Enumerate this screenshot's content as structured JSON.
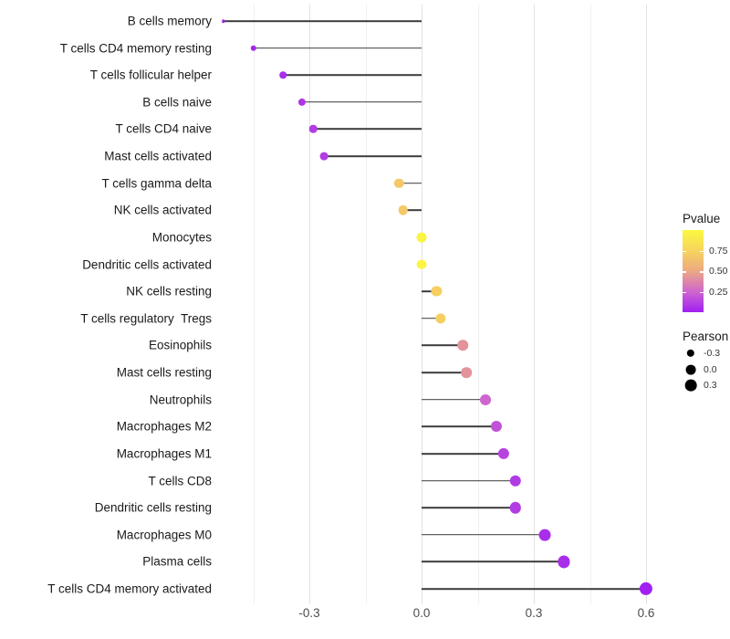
{
  "chart_data": {
    "type": "lollipop",
    "title": "",
    "xlabel": "",
    "ylabel": "",
    "grid": "vertical-only",
    "xlim": [
      -0.55,
      0.63
    ],
    "x_major_ticks": [
      -0.3,
      0.0,
      0.3,
      0.6
    ],
    "x_tick_labels": [
      "-0.3",
      "0.0",
      "0.3",
      "0.6"
    ],
    "x_minor_ticks": [
      -0.45,
      -0.15,
      0.15,
      0.45
    ],
    "rows": [
      {
        "label": "B cells memory",
        "pearson": -0.53,
        "pvalue": 0.01
      },
      {
        "label": "T cells CD4 memory resting",
        "pearson": -0.45,
        "pvalue": 0.02
      },
      {
        "label": "T cells follicular helper",
        "pearson": -0.37,
        "pvalue": 0.05
      },
      {
        "label": "B cells naive",
        "pearson": -0.32,
        "pvalue": 0.08
      },
      {
        "label": "T cells CD4 naive",
        "pearson": -0.29,
        "pvalue": 0.1
      },
      {
        "label": "Mast cells activated",
        "pearson": -0.26,
        "pvalue": 0.1
      },
      {
        "label": "T cells gamma delta",
        "pearson": -0.06,
        "pvalue": 0.68
      },
      {
        "label": "NK cells activated",
        "pearson": -0.05,
        "pvalue": 0.68
      },
      {
        "label": "Monocytes",
        "pearson": 0.0,
        "pvalue": 0.97
      },
      {
        "label": "Dendritic cells activated",
        "pearson": 0.0,
        "pvalue": 0.97
      },
      {
        "label": "NK cells resting",
        "pearson": 0.04,
        "pvalue": 0.72
      },
      {
        "label": "T cells regulatory  Tregs",
        "pearson": 0.05,
        "pvalue": 0.72
      },
      {
        "label": "Eosinophils",
        "pearson": 0.11,
        "pvalue": 0.42
      },
      {
        "label": "Mast cells resting",
        "pearson": 0.12,
        "pvalue": 0.42
      },
      {
        "label": "Neutrophils",
        "pearson": 0.17,
        "pvalue": 0.25
      },
      {
        "label": "Macrophages M2",
        "pearson": 0.2,
        "pvalue": 0.18
      },
      {
        "label": "Macrophages M1",
        "pearson": 0.22,
        "pvalue": 0.13
      },
      {
        "label": "T cells CD8",
        "pearson": 0.25,
        "pvalue": 0.1
      },
      {
        "label": "Dendritic cells resting",
        "pearson": 0.25,
        "pvalue": 0.1
      },
      {
        "label": "Macrophages M0",
        "pearson": 0.33,
        "pvalue": 0.05
      },
      {
        "label": "Plasma cells",
        "pearson": 0.38,
        "pvalue": 0.05
      },
      {
        "label": "T cells CD4 memory activated",
        "pearson": 0.6,
        "pvalue": 0.005
      }
    ],
    "legend_pvalue": {
      "title": "Pvalue",
      "tick_labels": [
        "0.75",
        "0.50",
        "0.25"
      ],
      "tick_values": [
        0.75,
        0.5,
        0.25
      ],
      "range": [
        0,
        1
      ],
      "gradient_low_color": "#a020f0",
      "gradient_high_color": "#fbf840",
      "gradient_stops": [
        "#a020f0",
        "#ce66cf",
        "#eca883",
        "#f7d45e",
        "#fbf840"
      ]
    },
    "legend_pearson": {
      "title": "Pearson",
      "items": [
        {
          "label": "-0.3",
          "value": -0.3
        },
        {
          "label": "0.0",
          "value": 0.0
        },
        {
          "label": "0.3",
          "value": 0.3
        }
      ]
    },
    "stem_color": "#3c3c3c"
  }
}
